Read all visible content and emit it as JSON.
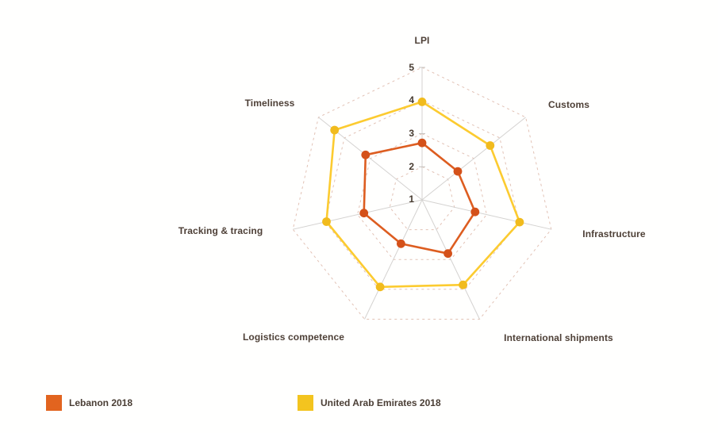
{
  "chart_data": {
    "type": "radar",
    "categories": [
      "LPI",
      "Customs",
      "Infrastructure",
      "International shipments",
      "Logistics competence",
      "Tracking & tracing",
      "Timeliness"
    ],
    "tick_labels": [
      "5",
      "4",
      "3",
      "2",
      "1"
    ],
    "axis_min": 1,
    "axis_max": 5,
    "series": [
      {
        "name": "Lebanon 2018",
        "color": "#DD5D20",
        "marker_color": "#D4511A",
        "values": [
          2.72,
          2.38,
          2.64,
          2.8,
          2.47,
          2.8,
          3.18
        ]
      },
      {
        "name": "United Arab Emirates 2018",
        "color": "#FCCB30",
        "marker_color": "#F1BB1D",
        "values": [
          3.96,
          3.63,
          4.02,
          3.85,
          3.92,
          3.96,
          4.38
        ]
      }
    ],
    "grid": {
      "rings": [
        2,
        3,
        4,
        5
      ],
      "ring_style": "dashed",
      "ring_color": "#e2c2b5",
      "spoke_color": "#d4d2d0",
      "tick_color": "#c7c3c0"
    },
    "legend_position": "bottom"
  },
  "legend": {
    "items": [
      {
        "label": "Lebanon 2018",
        "color": "#E2641F"
      },
      {
        "label": "United Arab Emirates 2018",
        "color": "#F3C41F"
      }
    ]
  }
}
